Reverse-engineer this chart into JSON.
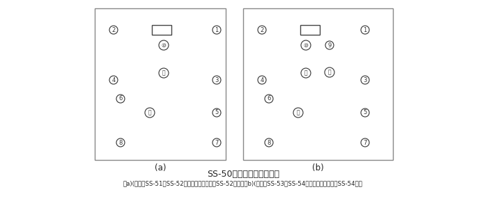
{
  "title": "SS-50系列背后端子接线图",
  "subtitle": "（a)(背视）SS-51、SS-52型，图中虚线部分仅SS-52型有；（b)(背视）SS-53、SS-54型，图中虚线部分仅SS-54型有",
  "label_a": "(a)",
  "label_b": "(b)",
  "bg_color": "#ffffff",
  "line_color": "#444444",
  "text_color": "#222222",
  "box_color": "#888888",
  "node_color": "#333333"
}
